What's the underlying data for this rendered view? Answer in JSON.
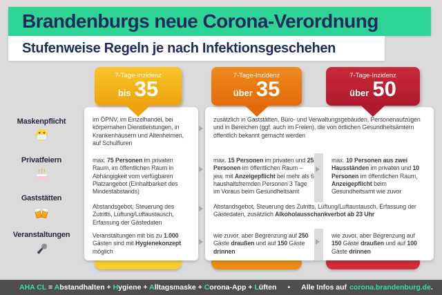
{
  "header": {
    "title": "Brandenburgs neue Corona-Verordnung",
    "subtitle": "Stufenweise Regeln je nach Infektionsgeschehen",
    "banner_color": "#2ed495",
    "text_color": "#1e2a5c"
  },
  "columns": [
    {
      "incidence_label": "7-Tage-Inzidenz",
      "prefix": "bis",
      "value": "35",
      "color": "#f3ab17",
      "bar_color": "#f8cd33"
    },
    {
      "incidence_label": "7-Tage-Inzidenz",
      "prefix": "über",
      "value": "35",
      "color": "#e87414",
      "bar_color": "#ec8c12"
    },
    {
      "incidence_label": "7-Tage-Inzidenz",
      "prefix": "über",
      "value": "50",
      "color": "#bd1f31",
      "bar_color": "#d12c3d"
    }
  ],
  "rows": [
    {
      "label": "Maskenpflicht",
      "icon": "face-mask"
    },
    {
      "label": "Privatfeiern",
      "icon": "birthday-cake"
    },
    {
      "label": "Gaststätten",
      "icon": "clinking-beer-mugs"
    },
    {
      "label": "Veranstaltungen",
      "icon": "microphone"
    }
  ],
  "cells": {
    "maskenpflicht_bis35": [
      {
        "t": "im ÖPNV, im Einzelhandel, bei körpernahen Dienstleistungen, in Krankenhäusern und Altenheimen, auf Schulfluren"
      }
    ],
    "maskenpflicht_ueber35_50": [
      {
        "t": "zusätzlich in Gaststätten, Büro- und Verwaltungsgebäuden, Personenaufzügen und in Bereichen (ggf. auch im Freien), die von örtlichen Gesundheitsämtern öffentlich bekannt gemacht werden"
      }
    ],
    "privatfeiern_bis35": [
      {
        "t": "max. "
      },
      {
        "t": "75 Personen",
        "b": true
      },
      {
        "t": " im privaten Raum, im öffentlichen Raum in Abhängigkeit vom verfügbaren Platzangebot (Einhaltbarkeit des Mindestabstands)"
      }
    ],
    "privatfeiern_ueber35": [
      {
        "t": "max. "
      },
      {
        "t": "15 Personen",
        "b": true
      },
      {
        "t": " im privaten und "
      },
      {
        "t": "25 Personen",
        "b": true
      },
      {
        "t": " im öffentlichen Raum – jew. mit "
      },
      {
        "t": "Anzeigepflicht",
        "b": true
      },
      {
        "t": " bei mehr als 6 haushaltsfremden Personen 3 Tage im Voraus beim Gesundheitsamt"
      }
    ],
    "privatfeiern_ueber50": [
      {
        "t": "max. "
      },
      {
        "t": "10 Personen aus zwei Hausständen",
        "b": true
      },
      {
        "t": " im privaten und "
      },
      {
        "t": "10 Personen",
        "b": true
      },
      {
        "t": " im öffentlichen Raum, "
      },
      {
        "t": "Anzeigepflicht",
        "b": true
      },
      {
        "t": " beim Gesundheitsamt wie zuvor"
      }
    ],
    "gaststaetten_bis35": [
      {
        "t": "Abstandsgebot, Steuerung des Zutritts, Lüftung/Luftaustausch, Erfassung der Gästedaten"
      }
    ],
    "gaststaetten_ueber35_50": [
      {
        "t": "Abstandsgebot, Steuerung des Zutritts, Lüftung/Luftaustausch, Erfassung der Gästedaten, zusätzlich "
      },
      {
        "t": "Alkoholausschankverbot ab 23 Uhr",
        "b": true
      }
    ],
    "veranstaltungen_bis35": [
      {
        "t": "Veranstaltungen mit bis zu "
      },
      {
        "t": "1.000",
        "b": true
      },
      {
        "t": " Gästen sind mit "
      },
      {
        "t": "Hygienekonzept",
        "b": true
      },
      {
        "t": " möglich"
      }
    ],
    "veranstaltungen_ueber35": [
      {
        "t": "wie zuvor, aber Begrenzung auf "
      },
      {
        "t": "250",
        "b": true
      },
      {
        "t": " Gäste "
      },
      {
        "t": "draußen",
        "b": true
      },
      {
        "t": " und auf "
      },
      {
        "t": "150",
        "b": true
      },
      {
        "t": " Gäste "
      },
      {
        "t": "drinnen",
        "b": true
      }
    ],
    "veranstaltungen_ueber50": [
      {
        "t": "wie zuvor, aber Begrenzung auf "
      },
      {
        "t": "150",
        "b": true
      },
      {
        "t": " Gäste "
      },
      {
        "t": "draußen",
        "b": true
      },
      {
        "t": " und auf "
      },
      {
        "t": "100",
        "b": true
      },
      {
        "t": " Gäste "
      },
      {
        "t": "drinnen",
        "b": true
      }
    ]
  },
  "footer": {
    "aha_segments": [
      {
        "t": "AHA CL",
        "g": true
      },
      {
        "t": " = "
      },
      {
        "t": "A",
        "g": true
      },
      {
        "t": "bstandhalten + "
      },
      {
        "t": "H",
        "g": true
      },
      {
        "t": "ygiene + "
      },
      {
        "t": "A",
        "g": true
      },
      {
        "t": "lltagsmaske + "
      },
      {
        "t": "C",
        "g": true
      },
      {
        "t": "orona-App + "
      },
      {
        "t": "L",
        "g": true
      },
      {
        "t": "üften"
      }
    ],
    "bullet": "•",
    "info_prefix": "Alle Infos auf",
    "link": "corona.brandenburg.de",
    "suffix": ".",
    "accent_color": "#3be0a0"
  }
}
